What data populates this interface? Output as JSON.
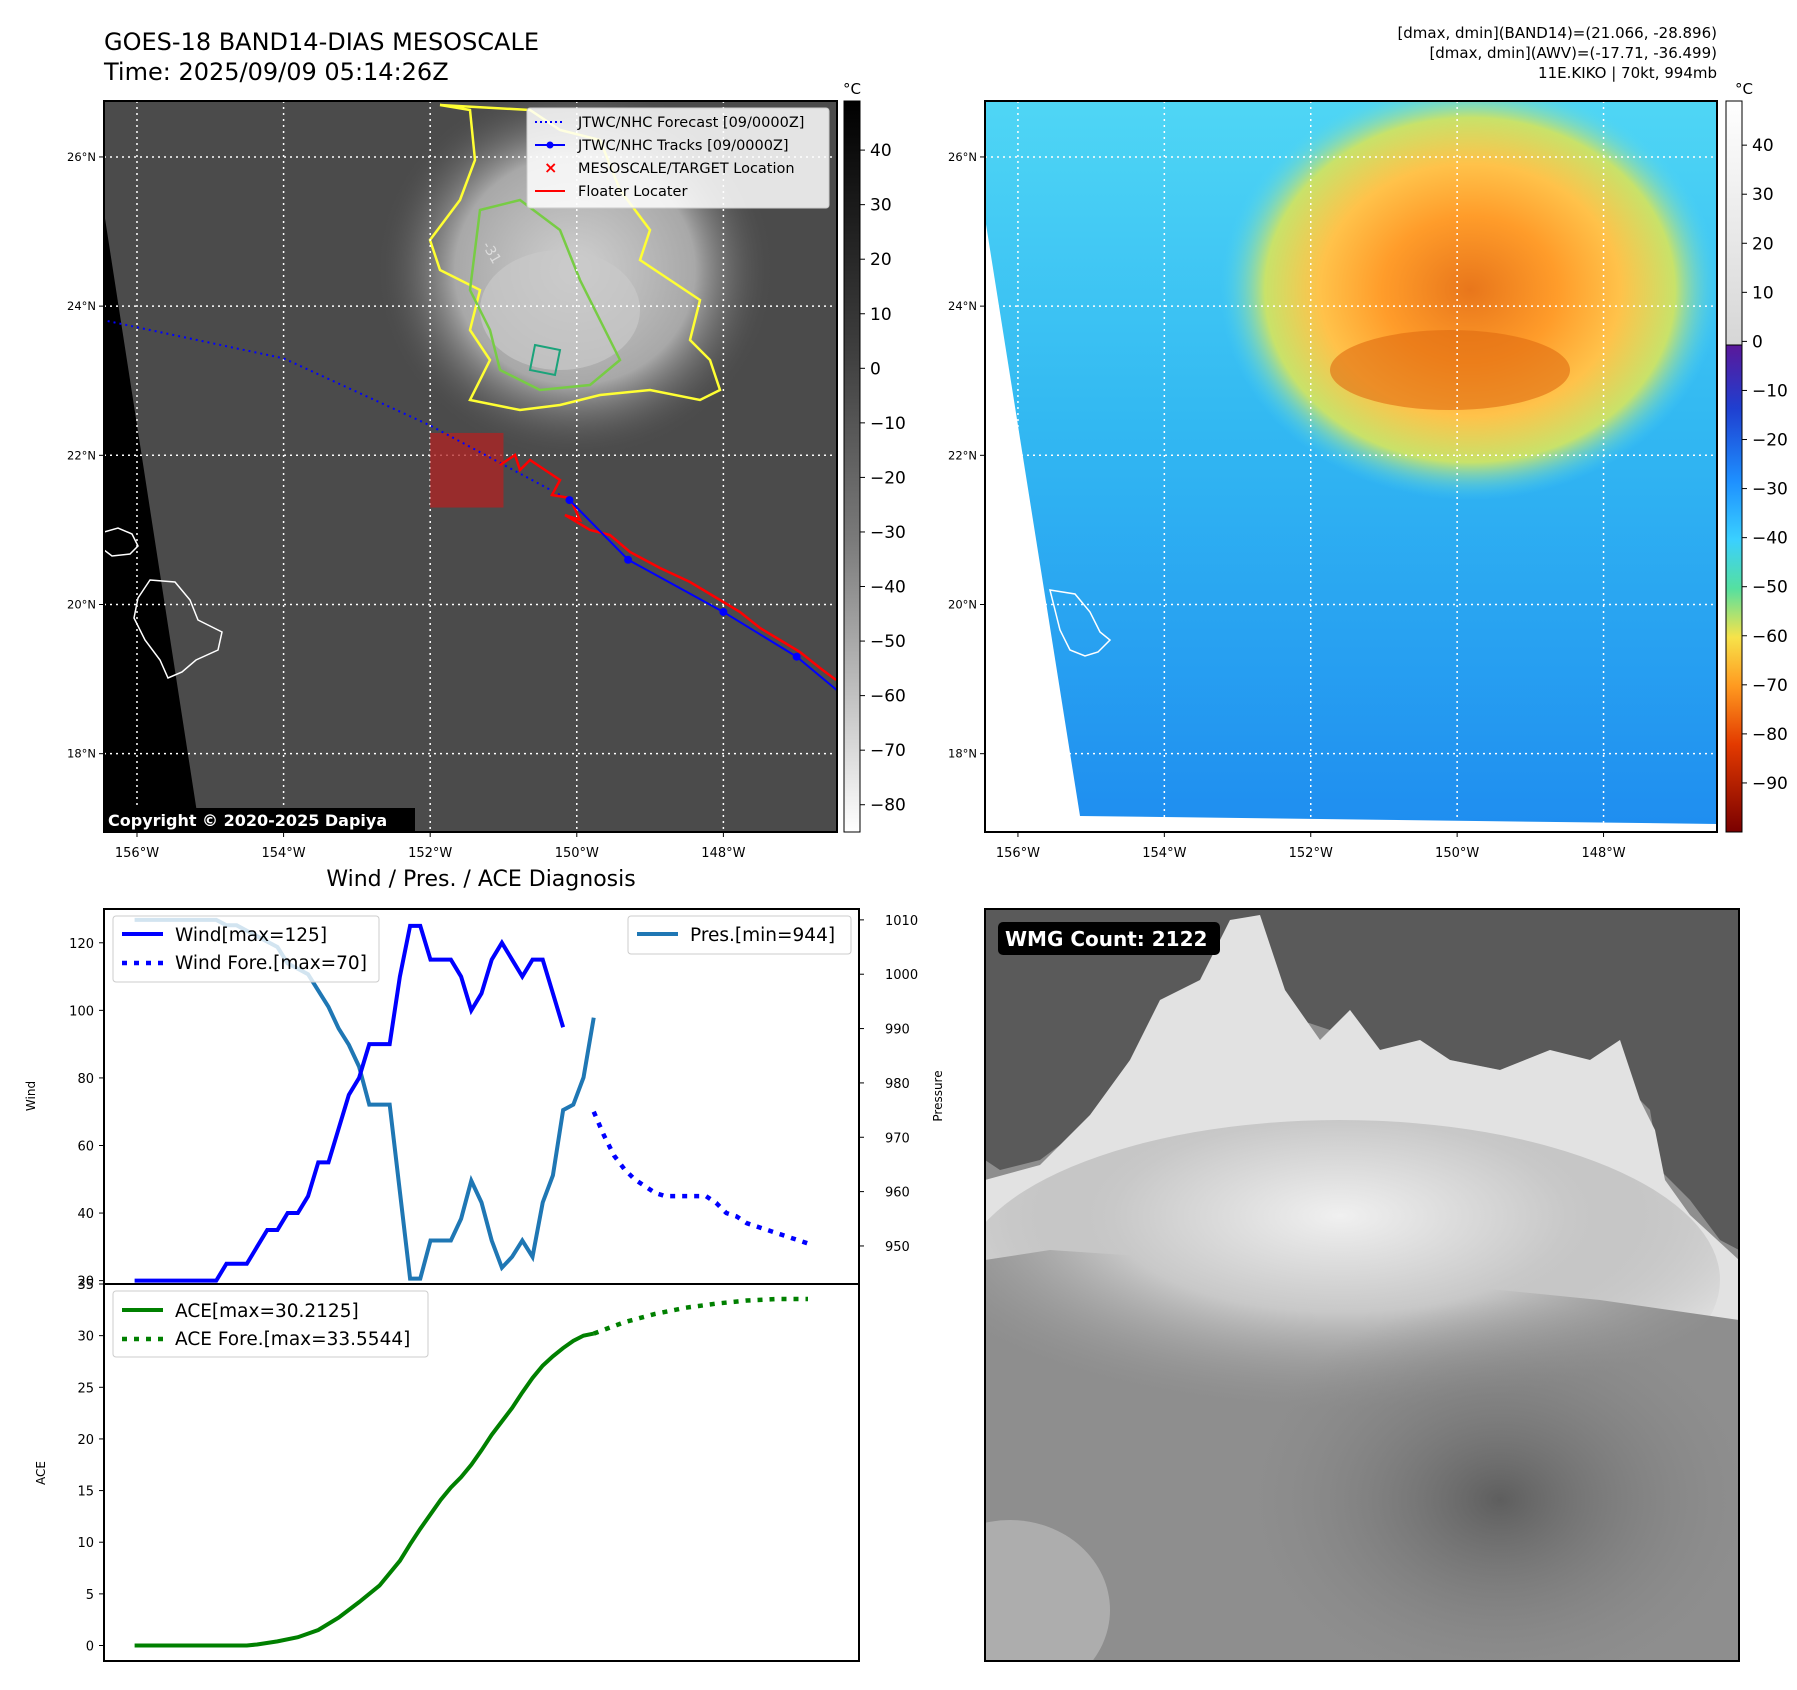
{
  "header": {
    "title_line1": "GOES-18 BAND14-DIAS MESOSCALE",
    "title_line2": "Time: 2025/09/09 05:14:26Z",
    "stats_line1": "[dmax, dmin](BAND14)=(21.066, -28.896)",
    "stats_line2": "[dmax, dmin](AWV)=(-17.71, -36.499)",
    "stats_line3": "11E.KIKO | 70kt, 994mb"
  },
  "ir_panel": {
    "lat_labels": [
      "26°N",
      "24°N",
      "22°N",
      "20°N",
      "18°N"
    ],
    "lat_values": [
      26,
      24,
      22,
      20,
      18
    ],
    "lon_labels": [
      "156°W",
      "154°W",
      "152°W",
      "150°W",
      "148°W"
    ],
    "lon_values": [
      -156,
      -154,
      -152,
      -150,
      -148
    ],
    "lon_range": [
      -156.45,
      -146.45
    ],
    "lat_range": [
      16.95,
      26.75
    ],
    "contour_label": "-31",
    "colorbar_unit": "°C",
    "colorbar_ticks": [
      "40",
      "30",
      "20",
      "10",
      "0",
      "−10",
      "−20",
      "−30",
      "−40",
      "−50",
      "−60",
      "−70",
      "−80"
    ],
    "colorbar_values": [
      40,
      30,
      20,
      10,
      0,
      -10,
      -20,
      -30,
      -40,
      -50,
      -60,
      -70,
      -80
    ],
    "colorbar_range": [
      -85,
      49
    ],
    "copyright": "Copyright © 2020-2025 Dapiya",
    "legend": [
      {
        "label": "JTWC/NHC Forecast [09/0000Z]",
        "color": "#0000ff",
        "style": "dotted"
      },
      {
        "label": "JTWC/NHC Tracks [09/0000Z]",
        "color": "#0000ff",
        "style": "line-marker"
      },
      {
        "label": "MESOSCALE/TARGET Location",
        "color": "#ff0000",
        "style": "x"
      },
      {
        "label": "Floater Locater",
        "color": "#ff0000",
        "style": "line"
      }
    ],
    "forecast_track": [
      [
        -156.4,
        23.8
      ],
      [
        -154,
        23.3
      ],
      [
        -152,
        22.4
      ],
      [
        -150.1,
        21.4
      ]
    ],
    "best_track": [
      [
        -150.1,
        21.4
      ],
      [
        -149.3,
        20.6
      ],
      [
        -148,
        19.9
      ],
      [
        -147,
        19.3
      ],
      [
        -146.45,
        18.85
      ]
    ],
    "target_box": {
      "lon": [
        -152,
        -151
      ],
      "lat": [
        21.3,
        22.3
      ]
    }
  },
  "wv_panel": {
    "lat_labels": [
      "26°N",
      "24°N",
      "22°N",
      "20°N",
      "18°N"
    ],
    "lat_values": [
      26,
      24,
      22,
      20,
      18
    ],
    "lon_labels": [
      "156°W",
      "154°W",
      "152°W",
      "150°W",
      "148°W"
    ],
    "lon_values": [
      -156,
      -154,
      -152,
      -150,
      -148
    ],
    "lon_range": [
      -156.45,
      -146.45
    ],
    "lat_range": [
      16.95,
      26.75
    ],
    "colorbar_unit": "°C",
    "colorbar_ticks": [
      "40",
      "30",
      "20",
      "10",
      "0",
      "−10",
      "−20",
      "−30",
      "−40",
      "−50",
      "−60",
      "−70",
      "−80",
      "−90"
    ],
    "colorbar_values": [
      40,
      30,
      20,
      10,
      0,
      -10,
      -20,
      -30,
      -40,
      -50,
      -60,
      -70,
      -80,
      -90
    ],
    "colorbar_range": [
      -100,
      49
    ]
  },
  "wmg_panel": {
    "label": "WMG Count: 2122"
  },
  "chart_data": [
    {
      "type": "line",
      "title": "Wind / Pres. / ACE Diagnosis",
      "ylabel": "Wind",
      "ylabel_right": "Pressure",
      "ylim": [
        19,
        130
      ],
      "ylim_right": [
        943,
        1012
      ],
      "xlim": [
        -3,
        71
      ],
      "yticks": [
        20,
        40,
        60,
        80,
        100,
        120
      ],
      "yticks_right": [
        950,
        960,
        970,
        980,
        990,
        1000,
        1010
      ],
      "series": [
        {
          "name": "Wind[max=125]",
          "axis": "left",
          "color": "#0000ff",
          "style": "solid",
          "x": [
            0,
            1,
            2,
            3,
            4,
            5,
            6,
            7,
            8,
            9,
            10,
            11,
            12,
            13,
            14,
            15,
            16,
            17,
            18,
            19,
            20,
            21,
            22,
            23,
            24,
            25,
            26,
            27,
            28,
            29,
            30,
            31,
            32,
            33,
            34,
            35,
            36,
            37,
            38,
            39,
            40,
            41,
            42
          ],
          "values": [
            20,
            20,
            20,
            20,
            20,
            20,
            20,
            20,
            20,
            25,
            25,
            25,
            30,
            35,
            35,
            40,
            40,
            45,
            55,
            55,
            65,
            75,
            80,
            90,
            90,
            90,
            110,
            125,
            125,
            115,
            115,
            115,
            110,
            100,
            105,
            115,
            120,
            115,
            110,
            115,
            115,
            105,
            95
          ]
        },
        {
          "name": "Wind Fore.[max=70]",
          "axis": "left",
          "color": "#0000ff",
          "style": "dotted",
          "x": [
            45,
            46,
            47,
            48,
            49,
            50,
            51,
            52,
            53,
            54,
            55,
            56,
            57,
            58,
            59,
            60,
            61,
            62,
            63,
            64,
            65,
            66
          ],
          "values": [
            70,
            63,
            57,
            53,
            50,
            48,
            46,
            45,
            45,
            45,
            45,
            45,
            43,
            40,
            39,
            37,
            36,
            35,
            34,
            33,
            32,
            31
          ]
        },
        {
          "name": "Pres.[min=944]",
          "axis": "right",
          "color": "#1f77b4",
          "style": "solid",
          "x": [
            0,
            1,
            2,
            3,
            4,
            5,
            6,
            7,
            8,
            9,
            10,
            11,
            12,
            13,
            14,
            15,
            16,
            17,
            18,
            19,
            20,
            21,
            22,
            23,
            24,
            25,
            26,
            27,
            28,
            29,
            30,
            31,
            32,
            33,
            34,
            35,
            36,
            37,
            38,
            39,
            40,
            41,
            42,
            43,
            44,
            45
          ],
          "values": [
            1010,
            1010,
            1010,
            1010,
            1010,
            1010,
            1010,
            1010,
            1010,
            1009,
            1009,
            1008,
            1007,
            1006,
            1005,
            1002,
            1001,
            1000,
            997,
            994,
            990,
            987,
            983,
            976,
            976,
            976,
            960,
            944,
            944,
            951,
            951,
            951,
            955,
            962,
            958,
            951,
            946,
            948,
            951,
            948,
            958,
            963,
            975,
            976,
            981,
            992
          ]
        },
        {
          "name": "ACE[max=30.2125]",
          "axis": "left2",
          "color": "#008000",
          "style": "solid",
          "x": [
            0,
            2,
            4,
            6,
            8,
            10,
            11,
            12,
            14,
            16,
            18,
            20,
            22,
            24,
            26,
            27,
            28,
            29,
            30,
            31,
            32,
            33,
            34,
            35,
            36,
            37,
            38,
            39,
            40,
            41,
            42,
            43,
            44,
            45
          ],
          "values": [
            0,
            0,
            0,
            0,
            0,
            0,
            0,
            0.1,
            0.4,
            0.8,
            1.5,
            2.7,
            4.2,
            5.8,
            8.2,
            9.8,
            11.3,
            12.7,
            14.1,
            15.3,
            16.3,
            17.5,
            18.9,
            20.4,
            21.7,
            23.0,
            24.5,
            25.9,
            27.1,
            28.0,
            28.8,
            29.5,
            30.0,
            30.2
          ]
        },
        {
          "name": "ACE Fore.[max=33.5544]",
          "axis": "left2",
          "color": "#008000",
          "style": "dotted",
          "x": [
            45,
            48,
            51,
            54,
            57,
            60,
            63,
            66
          ],
          "values": [
            30.2,
            31.3,
            32.1,
            32.7,
            33.1,
            33.4,
            33.55,
            33.55
          ]
        }
      ],
      "ace_ylabel": "ACE",
      "ace_ylim": [
        -1.5,
        35
      ],
      "ace_yticks": [
        0,
        5,
        10,
        15,
        20,
        25,
        30,
        35
      ]
    }
  ]
}
